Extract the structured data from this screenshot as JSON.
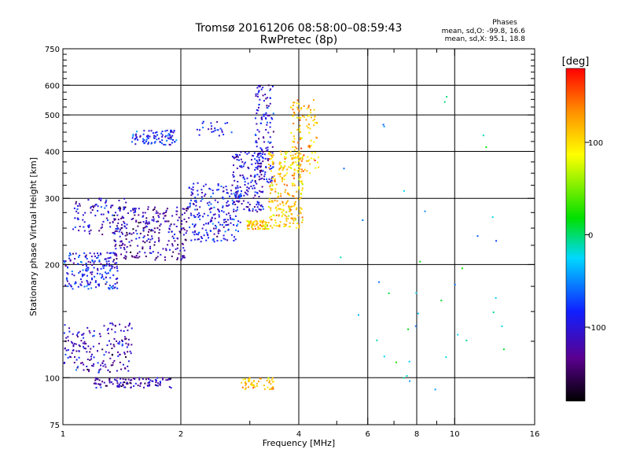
{
  "header": {
    "title_line1": "Tromsø 20161206 08:58:00–08:59:43",
    "title_line2": "RwPretec (8p)"
  },
  "stats": {
    "heading": "Phases",
    "line_o": "mean, sd,O: -99.8, 16.6",
    "line_x": "mean, sd,X:  95.1, 18.8"
  },
  "colorbar": {
    "label": "[deg]",
    "ticks": [
      "100",
      "0",
      "-100"
    ],
    "tick_values": [
      100,
      0,
      -100
    ],
    "range": [
      -180,
      180
    ]
  },
  "chart_data": {
    "type": "scatter",
    "xlabel": "Frequency [MHz]",
    "ylabel": "Stationary phase Virtual Height [km]",
    "x_scale": "log",
    "y_scale": "log",
    "xlim": [
      1,
      16
    ],
    "ylim": [
      75,
      750
    ],
    "x_ticks": [
      1,
      2,
      4,
      6,
      8,
      10,
      16
    ],
    "x_tick_labels": [
      "1",
      "2",
      "4",
      "6",
      "8",
      "10",
      "16"
    ],
    "x_minor_ticks": [
      3,
      5,
      7,
      9
    ],
    "y_ticks": [
      75,
      100,
      200,
      300,
      400,
      500,
      600,
      750
    ],
    "y_tick_labels": [
      "75",
      "100",
      "200",
      "300",
      "400",
      "500",
      "600",
      "750"
    ],
    "y_minor_ticks": [
      125,
      150,
      175,
      225,
      250,
      275,
      325,
      350,
      375,
      425,
      450,
      475,
      525,
      550,
      575,
      625,
      650,
      675,
      700,
      725
    ],
    "grid": true,
    "x_grid_lines": [
      2,
      4,
      6,
      8,
      10
    ],
    "y_grid_lines": [
      100,
      200,
      300,
      400,
      500,
      600
    ],
    "color_encoding": "phase [deg]",
    "clusters": [
      {
        "f": [
          1.0,
          1.38
        ],
        "h": [
          172,
          215
        ],
        "phase": -95,
        "n": 180
      },
      {
        "f": [
          1.35,
          2.1
        ],
        "h": [
          205,
          285
        ],
        "phase": -125,
        "n": 280
      },
      {
        "f": [
          2.1,
          2.85
        ],
        "h": [
          230,
          330
        ],
        "phase": -95,
        "n": 220
      },
      {
        "f": [
          1.05,
          1.45
        ],
        "h": [
          240,
          300
        ],
        "phase": -108,
        "n": 90
      },
      {
        "f": [
          1.5,
          1.95
        ],
        "h": [
          415,
          455
        ],
        "phase": -95,
        "n": 90
      },
      {
        "f": [
          2.2,
          2.7
        ],
        "h": [
          440,
          480
        ],
        "phase": -90,
        "n": 25
      },
      {
        "f": [
          2.7,
          3.25
        ],
        "h": [
          275,
          400
        ],
        "phase": -105,
        "n": 160
      },
      {
        "f": [
          3.1,
          3.45
        ],
        "h": [
          330,
          600
        ],
        "phase": -100,
        "n": 140
      },
      {
        "f": [
          2.95,
          3.35
        ],
        "h": [
          248,
          262
        ],
        "phase": 105,
        "n": 70
      },
      {
        "f": [
          3.35,
          4.1
        ],
        "h": [
          250,
          400
        ],
        "phase": 110,
        "n": 250
      },
      {
        "f": [
          3.8,
          4.5
        ],
        "h": [
          350,
          550
        ],
        "phase": 115,
        "n": 120
      },
      {
        "f": [
          1.0,
          1.5
        ],
        "h": [
          103,
          140
        ],
        "phase": -115,
        "n": 180
      },
      {
        "f": [
          1.2,
          1.9
        ],
        "h": [
          94,
          100
        ],
        "phase": -125,
        "n": 110
      },
      {
        "f": [
          2.85,
          3.45
        ],
        "h": [
          93,
          100
        ],
        "phase": 115,
        "n": 55
      },
      {
        "f": [
          5.0,
          13.5
        ],
        "h": [
          90,
          620
        ],
        "phase": -20,
        "n": 40
      }
    ]
  }
}
